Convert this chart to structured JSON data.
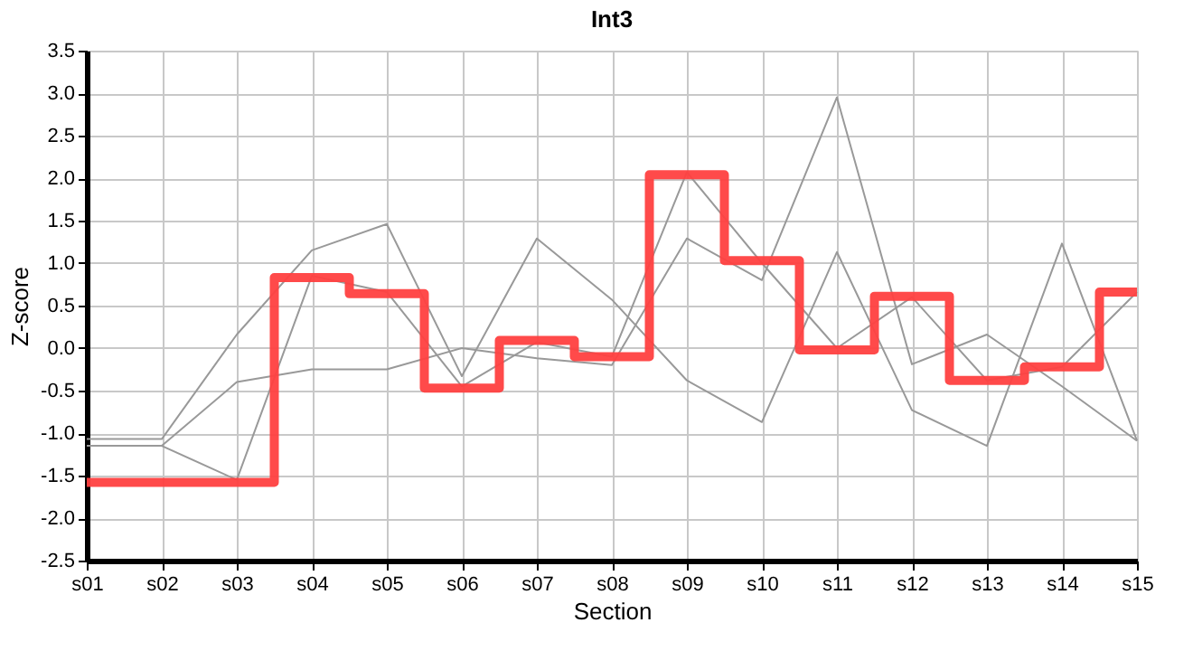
{
  "chart_data": {
    "type": "line",
    "title": "Int3",
    "xlabel": "Section",
    "ylabel": "Z-score",
    "categories": [
      "s01",
      "s02",
      "s03",
      "s04",
      "s05",
      "s06",
      "s07",
      "s08",
      "s09",
      "s10",
      "s11",
      "s12",
      "s13",
      "s14",
      "s15"
    ],
    "series": [
      {
        "color": "#999999",
        "values": [
          -1.07,
          -1.07,
          0.16,
          1.15,
          1.46,
          -0.33,
          1.29,
          0.57,
          -0.38,
          -0.87,
          1.13,
          -0.73,
          -1.15,
          1.23,
          -1.09
        ]
      },
      {
        "color": "#999999",
        "values": [
          -1.15,
          -1.15,
          -1.55,
          0.85,
          0.66,
          -0.45,
          0.07,
          -0.1,
          2.07,
          1.0,
          0.0,
          0.6,
          -0.38,
          -0.22,
          0.66
        ]
      },
      {
        "color": "#999999",
        "values": [
          -1.15,
          -1.15,
          -0.4,
          -0.25,
          -0.25,
          0.0,
          -0.12,
          -0.2,
          1.29,
          0.8,
          2.95,
          -0.19,
          0.16,
          -0.45,
          -1.09
        ]
      },
      {
        "type": "step",
        "color": "#ff4040",
        "values": [
          -1.58,
          -1.58,
          -1.58,
          0.83,
          0.64,
          -0.47,
          0.09,
          -0.1,
          2.04,
          1.03,
          -0.02,
          0.61,
          -0.38,
          -0.22,
          0.66
        ]
      }
    ],
    "ylim": [
      -2.5,
      3.5
    ],
    "yticks": [
      {
        "value": -2.5,
        "label": "-2.5"
      },
      {
        "value": -2,
        "label": "-2.0"
      },
      {
        "value": -1.5,
        "label": "-1.5"
      },
      {
        "value": -1,
        "label": "-1.0"
      },
      {
        "value": -0.5,
        "label": "-0.5"
      },
      {
        "value": 0,
        "label": "0.0"
      },
      {
        "value": 0.5,
        "label": "0.5"
      },
      {
        "value": 1,
        "label": "1.0"
      },
      {
        "value": 1.5,
        "label": "1.5"
      },
      {
        "value": 2,
        "label": "2.0"
      },
      {
        "value": 2.5,
        "label": "2.5"
      },
      {
        "value": 3,
        "label": "3.0"
      },
      {
        "value": 3.5,
        "label": "3.5"
      }
    ],
    "grid": true,
    "marker": "none",
    "line_style": "solid"
  }
}
